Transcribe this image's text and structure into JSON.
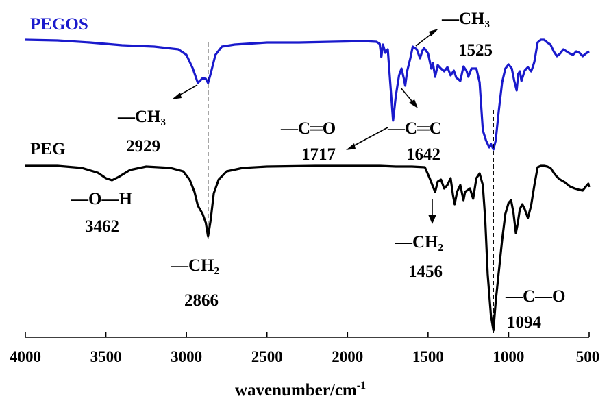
{
  "chart_data": {
    "type": "line",
    "title": "",
    "xlabel": "wavenumber/cm",
    "xlabel_superscript": "-1",
    "ylabel": "",
    "x_reversed": true,
    "xlim": [
      4000,
      500
    ],
    "x_ticks": [
      4000,
      3500,
      3000,
      2500,
      2000,
      1500,
      1000,
      500
    ],
    "grid": false,
    "series": [
      {
        "name": "PEGOS",
        "color": "#1a1acc",
        "points": [
          [
            4000,
            58
          ],
          [
            3800,
            59
          ],
          [
            3600,
            62
          ],
          [
            3400,
            66
          ],
          [
            3200,
            68
          ],
          [
            3050,
            72
          ],
          [
            3000,
            80
          ],
          [
            2960,
            100
          ],
          [
            2929,
            121
          ],
          [
            2900,
            114
          ],
          [
            2880,
            115
          ],
          [
            2866,
            121
          ],
          [
            2850,
            108
          ],
          [
            2820,
            80
          ],
          [
            2780,
            68
          ],
          [
            2700,
            65
          ],
          [
            2500,
            62
          ],
          [
            2300,
            62
          ],
          [
            2100,
            61
          ],
          [
            1900,
            60
          ],
          [
            1820,
            61
          ],
          [
            1800,
            64
          ],
          [
            1790,
            83
          ],
          [
            1780,
            65
          ],
          [
            1765,
            77
          ],
          [
            1750,
            72
          ],
          [
            1735,
            120
          ],
          [
            1717,
            176
          ],
          [
            1700,
            140
          ],
          [
            1680,
            110
          ],
          [
            1665,
            100
          ],
          [
            1650,
            115
          ],
          [
            1642,
            125
          ],
          [
            1630,
            104
          ],
          [
            1610,
            85
          ],
          [
            1595,
            68
          ],
          [
            1570,
            72
          ],
          [
            1550,
            85
          ],
          [
            1535,
            74
          ],
          [
            1525,
            70
          ],
          [
            1500,
            78
          ],
          [
            1480,
            100
          ],
          [
            1470,
            92
          ],
          [
            1456,
            112
          ],
          [
            1440,
            95
          ],
          [
            1420,
            100
          ],
          [
            1400,
            104
          ],
          [
            1380,
            98
          ],
          [
            1360,
            110
          ],
          [
            1340,
            103
          ],
          [
            1325,
            113
          ],
          [
            1300,
            118
          ],
          [
            1280,
            97
          ],
          [
            1260,
            104
          ],
          [
            1250,
            112
          ],
          [
            1230,
            100
          ],
          [
            1200,
            100
          ],
          [
            1180,
            120
          ],
          [
            1160,
            190
          ],
          [
            1140,
            205
          ],
          [
            1120,
            215
          ],
          [
            1110,
            210
          ],
          [
            1094,
            218
          ],
          [
            1080,
            205
          ],
          [
            1060,
            160
          ],
          [
            1040,
            120
          ],
          [
            1020,
            100
          ],
          [
            1000,
            94
          ],
          [
            980,
            100
          ],
          [
            965,
            118
          ],
          [
            950,
            132
          ],
          [
            940,
            108
          ],
          [
            930,
            104
          ],
          [
            920,
            118
          ],
          [
            900,
            103
          ],
          [
            880,
            98
          ],
          [
            860,
            104
          ],
          [
            850,
            98
          ],
          [
            840,
            90
          ],
          [
            820,
            62
          ],
          [
            800,
            58
          ],
          [
            780,
            58
          ],
          [
            760,
            62
          ],
          [
            740,
            65
          ],
          [
            720,
            75
          ],
          [
            700,
            82
          ],
          [
            680,
            78
          ],
          [
            660,
            72
          ],
          [
            640,
            75
          ],
          [
            620,
            78
          ],
          [
            600,
            80
          ],
          [
            580,
            75
          ],
          [
            560,
            77
          ],
          [
            540,
            82
          ],
          [
            520,
            78
          ],
          [
            500,
            75
          ]
        ]
      },
      {
        "name": "PEG",
        "color": "#000000",
        "points": [
          [
            4000,
            242
          ],
          [
            3800,
            242
          ],
          [
            3650,
            245
          ],
          [
            3550,
            252
          ],
          [
            3500,
            260
          ],
          [
            3462,
            263
          ],
          [
            3420,
            258
          ],
          [
            3350,
            248
          ],
          [
            3250,
            243
          ],
          [
            3100,
            245
          ],
          [
            3020,
            250
          ],
          [
            2980,
            262
          ],
          [
            2950,
            280
          ],
          [
            2929,
            300
          ],
          [
            2900,
            312
          ],
          [
            2880,
            325
          ],
          [
            2866,
            345
          ],
          [
            2850,
            322
          ],
          [
            2830,
            282
          ],
          [
            2800,
            262
          ],
          [
            2750,
            250
          ],
          [
            2650,
            245
          ],
          [
            2500,
            243
          ],
          [
            2200,
            242
          ],
          [
            2000,
            242
          ],
          [
            1800,
            242
          ],
          [
            1700,
            243
          ],
          [
            1600,
            243
          ],
          [
            1520,
            244
          ],
          [
            1490,
            260
          ],
          [
            1470,
            272
          ],
          [
            1456,
            280
          ],
          [
            1440,
            265
          ],
          [
            1420,
            262
          ],
          [
            1400,
            275
          ],
          [
            1380,
            270
          ],
          [
            1360,
            260
          ],
          [
            1345,
            285
          ],
          [
            1335,
            298
          ],
          [
            1320,
            280
          ],
          [
            1300,
            270
          ],
          [
            1280,
            292
          ],
          [
            1270,
            280
          ],
          [
            1240,
            275
          ],
          [
            1220,
            290
          ],
          [
            1200,
            260
          ],
          [
            1180,
            253
          ],
          [
            1160,
            270
          ],
          [
            1145,
            320
          ],
          [
            1130,
            400
          ],
          [
            1110,
            460
          ],
          [
            1094,
            482
          ],
          [
            1080,
            440
          ],
          [
            1060,
            395
          ],
          [
            1040,
            350
          ],
          [
            1020,
            312
          ],
          [
            1000,
            296
          ],
          [
            985,
            292
          ],
          [
            970,
            310
          ],
          [
            955,
            340
          ],
          [
            945,
            328
          ],
          [
            930,
            305
          ],
          [
            915,
            298
          ],
          [
            900,
            305
          ],
          [
            880,
            318
          ],
          [
            860,
            300
          ],
          [
            840,
            270
          ],
          [
            820,
            244
          ],
          [
            800,
            242
          ],
          [
            780,
            242
          ],
          [
            760,
            243
          ],
          [
            740,
            245
          ],
          [
            720,
            252
          ],
          [
            700,
            258
          ],
          [
            680,
            262
          ],
          [
            650,
            266
          ],
          [
            620,
            272
          ],
          [
            590,
            275
          ],
          [
            560,
            277
          ],
          [
            540,
            278
          ],
          [
            520,
            272
          ],
          [
            505,
            268
          ],
          [
            500,
            273
          ]
        ]
      }
    ],
    "annotations": [
      {
        "group": "—CH₃",
        "wavenumber": "2929"
      },
      {
        "group": "—C═O",
        "wavenumber": "1717"
      },
      {
        "group": "—C═C",
        "wavenumber": "1642"
      },
      {
        "group": "—CH₃",
        "wavenumber": "1525"
      },
      {
        "group": "—O—H",
        "wavenumber": "3462"
      },
      {
        "group": "—CH₂",
        "wavenumber": "2866"
      },
      {
        "group": "—CH₂",
        "wavenumber": "1456"
      },
      {
        "group": "—C—O",
        "wavenumber": "1094"
      }
    ],
    "reference_lines": [
      2866,
      1094
    ]
  }
}
